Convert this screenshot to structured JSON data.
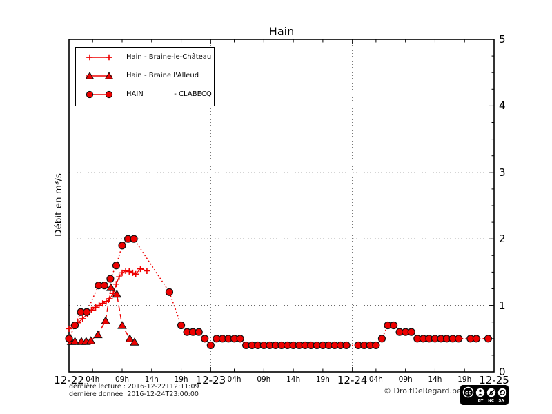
{
  "title": "Hain",
  "y_axis": {
    "label": "Débit en m³/s",
    "tick_labels": [
      "0",
      "1",
      "2",
      "3",
      "4",
      "5"
    ],
    "min": 0,
    "max": 5,
    "minor_step": 0.25
  },
  "x_axis": {
    "day_labels": [
      "12-22",
      "12-23",
      "12-24",
      "12-25"
    ],
    "hour_labels": [
      "04h",
      "09h",
      "14h",
      "19h"
    ],
    "hour_offsets": [
      4,
      9,
      14,
      19
    ],
    "total_hours": 72
  },
  "legend": [
    {
      "label": "Hain - Braine-le-Château",
      "marker": "plus"
    },
    {
      "label": "Hain - Braine l'Alleud",
      "marker": "triangle"
    },
    {
      "label": "HAIN              - CLABECQ",
      "marker": "circle"
    }
  ],
  "colors": {
    "series_red": "#ee0000",
    "marker_edge": "#111111",
    "grid": "#555555",
    "frame": "#000000"
  },
  "chart_data": {
    "type": "line",
    "title": "Hain",
    "ylabel": "Débit en m³/s",
    "ylim": [
      0,
      5
    ],
    "x_unit": "hours since 2016-12-22 00:00",
    "xlim_hours": [
      0,
      72
    ],
    "grid": "dotted horizontal at y=1..4, dotted vertical at day boundaries",
    "legend_position": "upper left",
    "series": [
      {
        "name": "Hain - Braine-le-Château",
        "marker": "plus",
        "linestyle": "solid",
        "color": "#ee0000",
        "points": [
          [
            0,
            0.65
          ],
          [
            0.8,
            0.7
          ],
          [
            1.5,
            0.74
          ],
          [
            2.3,
            0.8
          ],
          [
            3.1,
            0.87
          ],
          [
            3.8,
            0.93
          ],
          [
            4.5,
            0.97
          ],
          [
            5.1,
            1.0
          ],
          [
            5.7,
            1.03
          ],
          [
            6.3,
            1.06
          ],
          [
            6.9,
            1.1
          ],
          [
            7.5,
            1.18
          ],
          [
            8.0,
            1.32
          ],
          [
            8.5,
            1.43
          ],
          [
            9.0,
            1.49
          ],
          [
            9.6,
            1.52
          ],
          [
            10.2,
            1.51
          ],
          [
            10.8,
            1.49
          ],
          [
            11.3,
            1.47
          ],
          [
            12.1,
            1.55
          ],
          [
            13.2,
            1.52
          ]
        ]
      },
      {
        "name": "Hain - Braine l'Alleud",
        "marker": "triangle",
        "linestyle": "dashed",
        "color": "#ee0000",
        "points": [
          [
            0.4,
            0.46
          ],
          [
            1.0,
            0.46
          ],
          [
            2.1,
            0.46
          ],
          [
            2.9,
            0.46
          ],
          [
            3.7,
            0.47
          ],
          [
            4.9,
            0.56
          ],
          [
            6.2,
            0.77
          ],
          [
            7.1,
            1.27
          ],
          [
            8.1,
            1.17
          ],
          [
            9.0,
            0.7
          ],
          [
            10.3,
            0.5
          ],
          [
            11.1,
            0.45
          ]
        ]
      },
      {
        "name": "HAIN - CLABECQ",
        "marker": "circle",
        "linestyle": "dotted",
        "color": "#ee0000",
        "points": [
          [
            0,
            0.5
          ],
          [
            1,
            0.7
          ],
          [
            2,
            0.9
          ],
          [
            3,
            0.9
          ],
          [
            5,
            1.3
          ],
          [
            6,
            1.3
          ],
          [
            7,
            1.4
          ],
          [
            8,
            1.6
          ],
          [
            9,
            1.9
          ],
          [
            10,
            2.0
          ],
          [
            11,
            2.0
          ],
          [
            17,
            1.2
          ],
          [
            19,
            0.7
          ],
          [
            20,
            0.6
          ],
          [
            21,
            0.6
          ],
          [
            22,
            0.6
          ],
          [
            23,
            0.5
          ],
          [
            24,
            0.4
          ],
          [
            25,
            0.5
          ],
          [
            26,
            0.5
          ],
          [
            27,
            0.5
          ],
          [
            28,
            0.5
          ],
          [
            29,
            0.5
          ],
          [
            30,
            0.4
          ],
          [
            31,
            0.4
          ],
          [
            32,
            0.4
          ],
          [
            33,
            0.4
          ],
          [
            34,
            0.4
          ],
          [
            35,
            0.4
          ],
          [
            36,
            0.4
          ],
          [
            37,
            0.4
          ],
          [
            38,
            0.4
          ],
          [
            39,
            0.4
          ],
          [
            40,
            0.4
          ],
          [
            41,
            0.4
          ],
          [
            42,
            0.4
          ],
          [
            43,
            0.4
          ],
          [
            44,
            0.4
          ],
          [
            45,
            0.4
          ],
          [
            46,
            0.4
          ],
          [
            47,
            0.4
          ],
          [
            49,
            0.4
          ],
          [
            50,
            0.4
          ],
          [
            51,
            0.4
          ],
          [
            52,
            0.4
          ],
          [
            53,
            0.5
          ],
          [
            54,
            0.7
          ],
          [
            55,
            0.7
          ],
          [
            56,
            0.6
          ],
          [
            57,
            0.6
          ],
          [
            58,
            0.6
          ],
          [
            59,
            0.5
          ],
          [
            60,
            0.5
          ],
          [
            61,
            0.5
          ],
          [
            62,
            0.5
          ],
          [
            63,
            0.5
          ],
          [
            64,
            0.5
          ],
          [
            65,
            0.5
          ],
          [
            66,
            0.5
          ],
          [
            68,
            0.5
          ],
          [
            69,
            0.5
          ],
          [
            71,
            0.5
          ]
        ]
      }
    ]
  },
  "footer": {
    "line1": "dernière lecture : 2016-12-22T12:11:09",
    "line2": "dernière donnée  2016-12-24T23:00:00",
    "copyright": "© DroitDeRegard.be"
  },
  "cc_badge": {
    "icons": [
      "cc-logo",
      "attribution-person",
      "non-commercial-dollar",
      "share-alike-arrow"
    ],
    "cc_text": "cc",
    "labels": [
      "BY",
      "NC",
      "SA"
    ]
  }
}
